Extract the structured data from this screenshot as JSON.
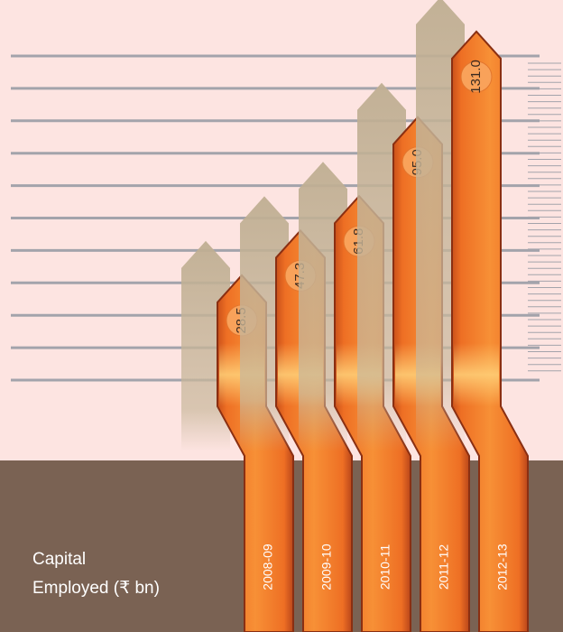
{
  "chart_data": {
    "type": "arrow-bar",
    "title": "Capital\nEmployed (₹ bn)",
    "categories": [
      "2008-09",
      "2009-10",
      "2010-11",
      "2011-12",
      "2012-13"
    ],
    "values": [
      28.5,
      47.3,
      61.8,
      95.0,
      131.0
    ],
    "value_labels": [
      "28.5",
      "47.3",
      "61.8",
      "95.0",
      "131.0"
    ],
    "color": "#f07a28"
  }
}
